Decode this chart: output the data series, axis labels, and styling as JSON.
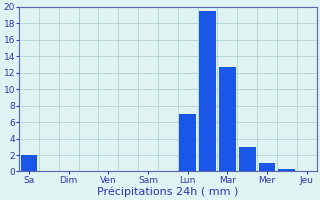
{
  "bars": [
    {
      "x": 0,
      "height": 2.0
    },
    {
      "x": 1,
      "height": 0.0
    },
    {
      "x": 2,
      "height": 0.0
    },
    {
      "x": 3,
      "height": 0.0
    },
    {
      "x": 4,
      "height": 0.0
    },
    {
      "x": 5,
      "height": 0.0
    },
    {
      "x": 6,
      "height": 0.0
    },
    {
      "x": 7,
      "height": 0.0
    },
    {
      "x": 8,
      "height": 7.0
    },
    {
      "x": 9,
      "height": 19.5
    },
    {
      "x": 10,
      "height": 12.7
    },
    {
      "x": 11,
      "height": 3.0
    },
    {
      "x": 12,
      "height": 1.0
    },
    {
      "x": 13,
      "height": 0.3
    },
    {
      "x": 14,
      "height": 0.0
    }
  ],
  "bar_color": "#1a56e8",
  "bar_width": 0.85,
  "background_color": "#dff3f3",
  "grid_color": "#aacccc",
  "spine_color": "#5566aa",
  "tick_color": "#3333aa",
  "xlabel": "Précipitations 24h ( mm )",
  "xlabel_fontsize": 8,
  "ylim": [
    0,
    20
  ],
  "yticks": [
    0,
    2,
    4,
    6,
    8,
    10,
    12,
    14,
    16,
    18,
    20
  ],
  "n_bars": 15,
  "day_labels": [
    "Sa",
    "Dim",
    "Ven",
    "Sam",
    "Lun",
    "Mar",
    "Mer",
    "Jeu"
  ],
  "day_positions": [
    0,
    2,
    4,
    6,
    8,
    10,
    12,
    14
  ],
  "xlim": [
    -0.5,
    14.5
  ]
}
